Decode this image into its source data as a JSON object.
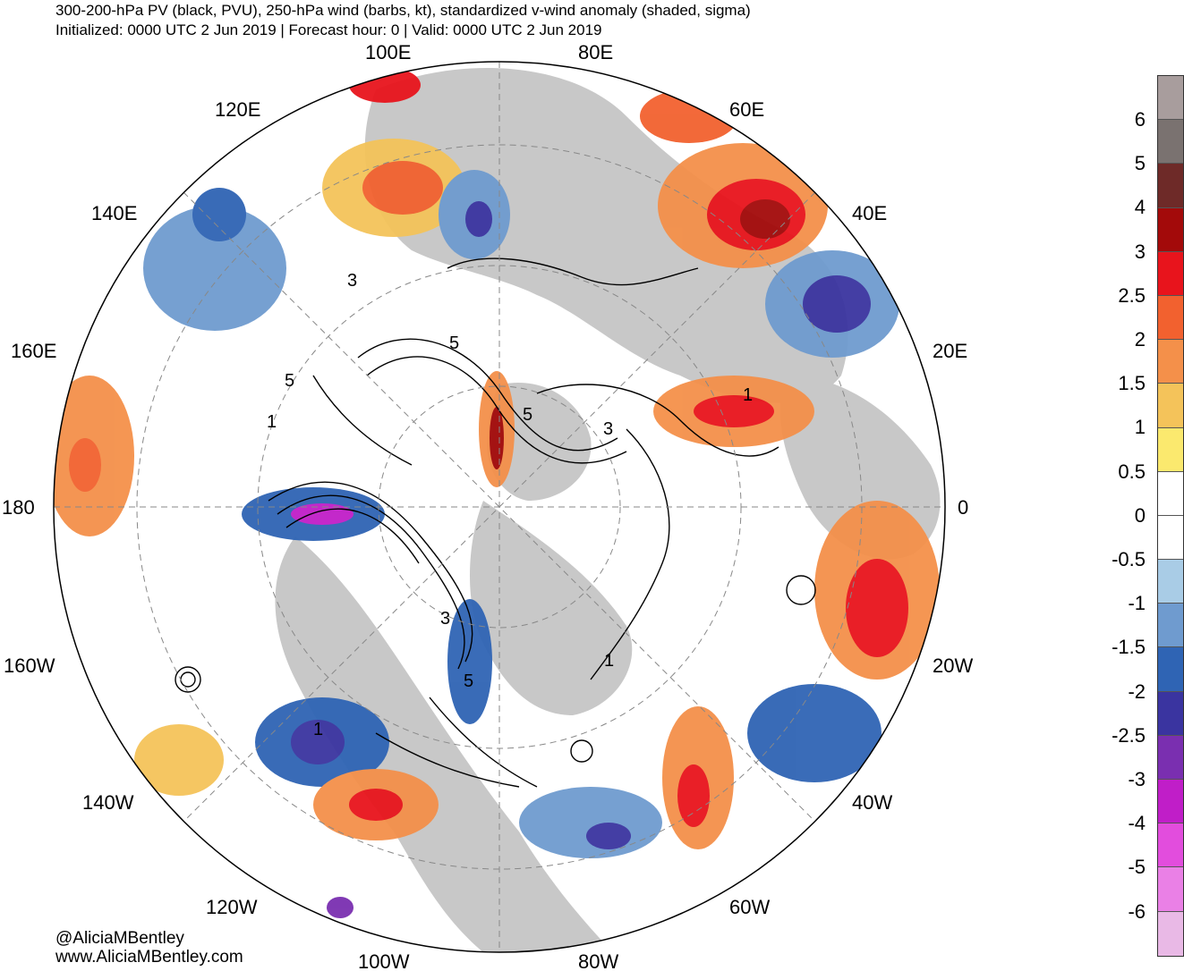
{
  "header": {
    "title": "300-200-hPa PV (black, PVU), 250-hPa wind (barbs, kt), standardized v-wind anomaly (shaded, sigma)",
    "subtitle": "Initialized: 0000 UTC 2 Jun 2019 | Forecast hour: 0 | Valid: 0000 UTC 2 Jun 2019"
  },
  "map": {
    "projection": "north-polar-stereographic",
    "longitude_labels": [
      "100E",
      "80E",
      "120E",
      "60E",
      "140E",
      "40E",
      "160E",
      "20E",
      "180",
      "0",
      "160W",
      "20W",
      "140W",
      "40W",
      "120W",
      "60W",
      "100W",
      "80W"
    ],
    "contour_labels": [
      "3",
      "5",
      "5",
      "1",
      "5",
      "1",
      "3",
      "3",
      "1",
      "5",
      "1"
    ],
    "colors": {
      "land": "#c8c8c8",
      "ocean": "#ffffff",
      "contour": "#000000",
      "grid": "#888888"
    }
  },
  "colorbar": {
    "labels": [
      "6",
      "5",
      "4",
      "3",
      "2.5",
      "2",
      "1.5",
      "1",
      "0.5",
      "0",
      "-0.5",
      "-1",
      "-1.5",
      "-2",
      "-2.5",
      "-3",
      "-4",
      "-5",
      "-6"
    ],
    "colors": [
      "#a89d9d",
      "#7a7270",
      "#6e2a28",
      "#a30a0a",
      "#e8141c",
      "#f2612f",
      "#f4904a",
      "#f4c35a",
      "#fbe96e",
      "#ffffff",
      "#ffffff",
      "#a9cce6",
      "#6f9bcf",
      "#2f64b4",
      "#3a34a0",
      "#7a2fb0",
      "#c01ec8",
      "#e24ddd",
      "#ea80e6",
      "#e9b9e6"
    ]
  },
  "credits": {
    "handle": "@AliciaMBentley",
    "website": "www.AliciaMBentley.com"
  }
}
